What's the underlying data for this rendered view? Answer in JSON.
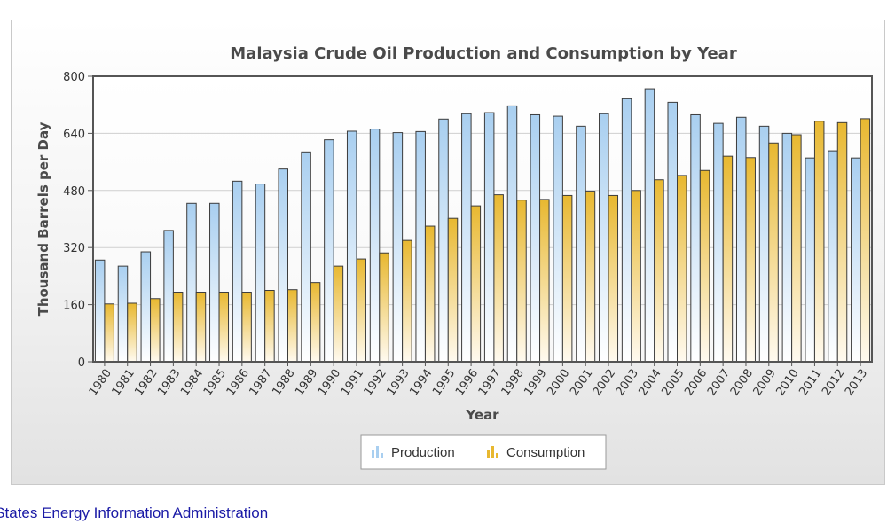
{
  "chart_data": {
    "type": "bar",
    "title": "Malaysia Crude Oil Production and Consumption by Year",
    "xlabel": "Year",
    "ylabel": "Thousand Barrels per Day",
    "ylim": [
      0,
      800
    ],
    "yticks": [
      0,
      160,
      320,
      480,
      640,
      800
    ],
    "grid": true,
    "legend_position": "bottom-center",
    "categories": [
      "1980",
      "1981",
      "1982",
      "1983",
      "1984",
      "1985",
      "1986",
      "1987",
      "1988",
      "1989",
      "1990",
      "1991",
      "1992",
      "1993",
      "1994",
      "1995",
      "1996",
      "1997",
      "1998",
      "1999",
      "2000",
      "2001",
      "2002",
      "2003",
      "2004",
      "2005",
      "2006",
      "2007",
      "2008",
      "2009",
      "2010",
      "2011",
      "2012",
      "2013"
    ],
    "series": [
      {
        "name": "Production",
        "color": "#a9cff0",
        "values": [
          285,
          268,
          308,
          368,
          444,
          444,
          506,
          498,
          540,
          588,
          622,
          646,
          652,
          642,
          645,
          680,
          695,
          698,
          717,
          692,
          688,
          660,
          695,
          737,
          765,
          727,
          692,
          668,
          685,
          660,
          640,
          571,
          591,
          571
        ]
      },
      {
        "name": "Consumption",
        "color": "#e8b830",
        "values": [
          162,
          164,
          177,
          195,
          195,
          195,
          195,
          200,
          202,
          222,
          268,
          288,
          305,
          340,
          380,
          402,
          437,
          468,
          453,
          455,
          466,
          478,
          466,
          480,
          510,
          522,
          536,
          576,
          572,
          613,
          636,
          674,
          670,
          681
        ]
      }
    ]
  },
  "source": {
    "text": "d States Energy Information Administration"
  }
}
